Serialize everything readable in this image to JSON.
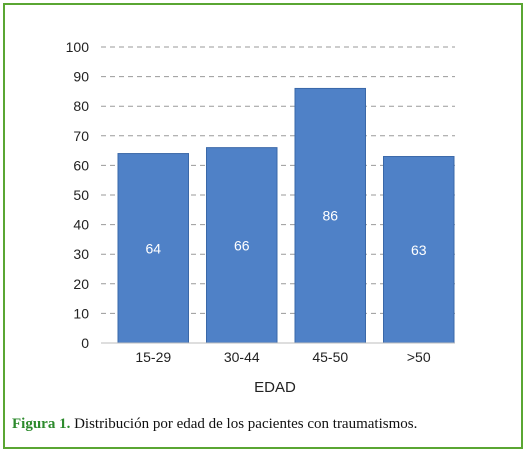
{
  "chart_data": {
    "type": "bar",
    "categories": [
      "15-29",
      "30-44",
      "45-50",
      ">50"
    ],
    "values": [
      64,
      66,
      86,
      63
    ],
    "data_labels": [
      "64",
      "66",
      "86",
      "63"
    ],
    "title": "",
    "xlabel": "EDAD",
    "ylabel": "",
    "ylim": [
      0,
      100
    ],
    "yticks": [
      0,
      10,
      20,
      30,
      40,
      50,
      60,
      70,
      80,
      90,
      100
    ],
    "grid": true,
    "legend": "none",
    "bar_color": "#4f81c7",
    "bar_edge_color": "#3a68a8",
    "label_color": "#ffffff",
    "gridline_color": "#9a9a9a"
  },
  "caption": {
    "figure_label": "Figura 1.",
    "text": " Distribución por edad de los pacientes con traumatismos."
  },
  "colors": {
    "frame_border": "#5aa632",
    "figure_label": "#2c8a2c"
  }
}
